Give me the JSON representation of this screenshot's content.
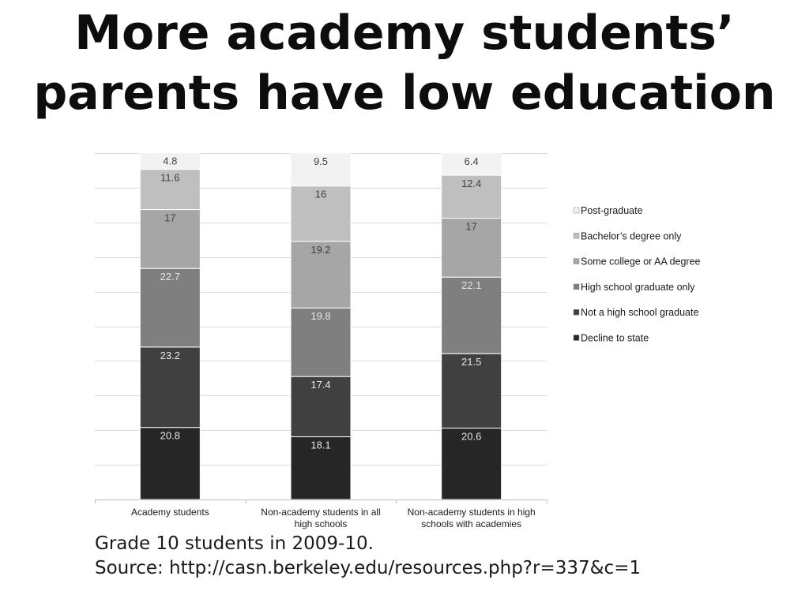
{
  "title": {
    "line1": "More academy students’",
    "line2": "parents have low education"
  },
  "caption": {
    "line1": "Grade 10 students in 2009-10.",
    "line2": "Source: http://casn.berkeley.edu/resources.php?r=337&c=1"
  },
  "colors": {
    "Decline to state": "#262626",
    "Not a high school graduate": "#404040",
    "High school graduate only": "#7f7f7f",
    "Some college or AA degree": "#a6a6a6",
    "Bachelor’s degree only": "#bfbfbf",
    "Post-graduate": "#f2f2f2"
  },
  "chart_data": {
    "type": "bar",
    "stacked": true,
    "categories": [
      [
        "Academy students"
      ],
      [
        "Non-academy students in all",
        "high schools"
      ],
      [
        "Non-academy students in high",
        "schools with academies"
      ]
    ],
    "series": [
      {
        "name": "Decline to state",
        "values": [
          20.8,
          18.1,
          20.6
        ]
      },
      {
        "name": "Not a high school graduate",
        "values": [
          23.2,
          17.4,
          21.5
        ]
      },
      {
        "name": "High school graduate only",
        "values": [
          22.7,
          19.8,
          22.1
        ]
      },
      {
        "name": "Some college or AA degree",
        "values": [
          17,
          19.2,
          17
        ]
      },
      {
        "name": "Bachelor’s degree only",
        "values": [
          11.6,
          16,
          12.4
        ]
      },
      {
        "name": "Post-graduate",
        "values": [
          4.8,
          9.5,
          6.4
        ]
      }
    ],
    "ylim": [
      0,
      100
    ],
    "grid": true,
    "legend_position": "right"
  }
}
